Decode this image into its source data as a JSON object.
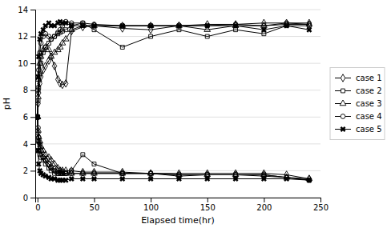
{
  "chart_data": {
    "type": "line",
    "xlabel": "Elapsed time(hr)",
    "ylabel": "pH",
    "xlim": [
      -2,
      250
    ],
    "ylim": [
      0,
      14
    ],
    "xticks": [
      0,
      50,
      100,
      150,
      200,
      250
    ],
    "yticks": [
      0,
      2,
      4,
      6,
      8,
      10,
      12,
      14
    ],
    "grid": true,
    "legend": "right",
    "series": [
      {
        "name": "case 1",
        "color": "#000000",
        "marker": "diamond",
        "x": [
          0,
          0.5,
          1,
          2,
          3,
          5,
          7,
          10,
          12,
          15,
          18,
          20,
          22,
          25,
          30,
          40,
          50,
          75,
          100,
          125,
          150,
          175,
          200,
          220,
          240
        ],
        "values": [
          6.0,
          7.0,
          7.8,
          8.5,
          9.0,
          9.5,
          9.8,
          10.2,
          10.5,
          9.8,
          8.8,
          8.5,
          8.4,
          8.5,
          12.4,
          12.7,
          12.8,
          12.6,
          12.5,
          12.8,
          12.9,
          12.9,
          13.0,
          13.0,
          13.0
        ]
      },
      {
        "color": "#000000",
        "marker": "diamond",
        "x": [
          0,
          0.5,
          1,
          2,
          3,
          5,
          7,
          10,
          12,
          15,
          18,
          20,
          22,
          25,
          30,
          40,
          50,
          75,
          100,
          125,
          150,
          175,
          200,
          220,
          240
        ],
        "values": [
          6.0,
          4.8,
          4.2,
          3.8,
          3.5,
          3.0,
          2.8,
          2.5,
          2.3,
          2.1,
          2.0,
          2.0,
          2.0,
          2.0,
          2.0,
          1.9,
          1.9,
          1.9,
          1.8,
          1.8,
          1.8,
          1.8,
          1.8,
          1.7,
          1.4
        ]
      },
      {
        "name": "case 2",
        "color": "#000000",
        "marker": "square",
        "x": [
          0,
          0.5,
          1,
          2,
          3,
          5,
          7,
          10,
          12,
          15,
          18,
          20,
          22,
          25,
          30,
          40,
          50,
          75,
          100,
          125,
          150,
          175,
          200,
          220,
          240
        ],
        "values": [
          6.0,
          7.2,
          8.2,
          9.2,
          10.0,
          10.8,
          11.2,
          11.5,
          11.8,
          12.0,
          12.2,
          12.3,
          12.4,
          12.5,
          12.8,
          13.0,
          12.5,
          11.2,
          12.0,
          12.5,
          12.0,
          12.5,
          12.2,
          12.8,
          12.8
        ]
      },
      {
        "color": "#000000",
        "marker": "square",
        "x": [
          0,
          0.5,
          1,
          2,
          3,
          5,
          7,
          10,
          12,
          15,
          18,
          20,
          22,
          25,
          30,
          40,
          50,
          75,
          100,
          125,
          150,
          175,
          200,
          220,
          240
        ],
        "values": [
          6.0,
          4.2,
          3.5,
          3.2,
          3.0,
          2.8,
          2.5,
          2.2,
          2.0,
          1.8,
          1.8,
          1.8,
          1.8,
          1.8,
          2.0,
          3.2,
          2.5,
          1.8,
          1.8,
          1.6,
          1.7,
          1.7,
          1.7,
          1.5,
          1.3
        ]
      },
      {
        "name": "case 3",
        "color": "#000000",
        "marker": "triangle",
        "x": [
          0,
          0.5,
          1,
          2,
          3,
          5,
          7,
          10,
          12,
          15,
          18,
          20,
          22,
          25,
          30,
          40,
          50,
          75,
          100,
          125,
          150,
          175,
          200,
          220,
          240
        ],
        "values": [
          6.0,
          7.5,
          8.8,
          10.0,
          10.5,
          11.0,
          11.2,
          11.0,
          10.5,
          10.8,
          11.0,
          11.2,
          11.5,
          11.8,
          12.5,
          12.8,
          12.8,
          12.8,
          12.8,
          12.8,
          12.5,
          12.8,
          12.8,
          12.9,
          12.9
        ]
      },
      {
        "color": "#000000",
        "marker": "triangle",
        "x": [
          0,
          0.5,
          1,
          2,
          3,
          5,
          7,
          10,
          12,
          15,
          18,
          20,
          22,
          25,
          30,
          40,
          50,
          75,
          100,
          125,
          150,
          175,
          200,
          220,
          240
        ],
        "values": [
          6.0,
          5.0,
          4.5,
          4.2,
          3.8,
          3.5,
          3.2,
          3.0,
          2.8,
          2.5,
          2.2,
          2.0,
          1.9,
          1.8,
          1.8,
          1.8,
          1.8,
          1.8,
          1.8,
          1.7,
          1.7,
          1.7,
          1.7,
          1.5,
          1.4
        ]
      },
      {
        "name": "case 4",
        "color": "#000000",
        "marker": "circle",
        "x": [
          0,
          0.5,
          1,
          2,
          3,
          5,
          7,
          10,
          12,
          15,
          18,
          20,
          22,
          25,
          30,
          40,
          50,
          75,
          100,
          125,
          150,
          175,
          200,
          220,
          240
        ],
        "values": [
          6.0,
          8.0,
          9.5,
          10.8,
          11.5,
          12.0,
          12.2,
          12.0,
          11.8,
          12.0,
          12.3,
          12.5,
          12.8,
          13.1,
          13.0,
          13.0,
          12.9,
          12.8,
          12.8,
          12.8,
          12.8,
          12.9,
          12.8,
          13.0,
          12.9
        ]
      },
      {
        "color": "#000000",
        "marker": "circle",
        "x": [
          0,
          0.5,
          1,
          2,
          3,
          5,
          7,
          10,
          12,
          15,
          18,
          20,
          22,
          25,
          30,
          40,
          50,
          75,
          100,
          125,
          150,
          175,
          200,
          220,
          240
        ],
        "values": [
          6.0,
          5.2,
          4.5,
          4.0,
          3.5,
          3.0,
          2.8,
          2.5,
          2.2,
          2.0,
          1.8,
          1.8,
          1.8,
          1.8,
          1.8,
          1.8,
          1.8,
          1.8,
          1.8,
          1.7,
          1.7,
          1.7,
          1.6,
          1.5,
          1.3
        ]
      },
      {
        "name": "case 5",
        "color": "#000000",
        "marker": "x",
        "x": [
          0,
          0.5,
          1,
          2,
          3,
          5,
          7,
          10,
          12,
          15,
          18,
          20,
          22,
          25,
          30,
          40,
          50,
          75,
          100,
          125,
          150,
          175,
          200,
          220,
          240
        ],
        "values": [
          6.0,
          9.0,
          10.5,
          11.8,
          12.2,
          12.5,
          12.8,
          13.0,
          12.8,
          12.8,
          13.0,
          13.1,
          13.0,
          13.0,
          12.8,
          12.8,
          12.8,
          12.8,
          12.8,
          12.8,
          12.8,
          12.8,
          12.5,
          12.8,
          12.5
        ]
      },
      {
        "color": "#000000",
        "marker": "x",
        "x": [
          0,
          0.5,
          1,
          2,
          3,
          5,
          7,
          10,
          12,
          15,
          18,
          20,
          22,
          25,
          30,
          40,
          50,
          75,
          100,
          125,
          150,
          175,
          200,
          220,
          240
        ],
        "values": [
          6.0,
          3.5,
          2.5,
          2.0,
          1.8,
          1.7,
          1.6,
          1.5,
          1.4,
          1.4,
          1.3,
          1.3,
          1.3,
          1.3,
          1.4,
          1.4,
          1.4,
          1.4,
          1.4,
          1.4,
          1.4,
          1.4,
          1.4,
          1.4,
          1.3
        ]
      }
    ]
  }
}
